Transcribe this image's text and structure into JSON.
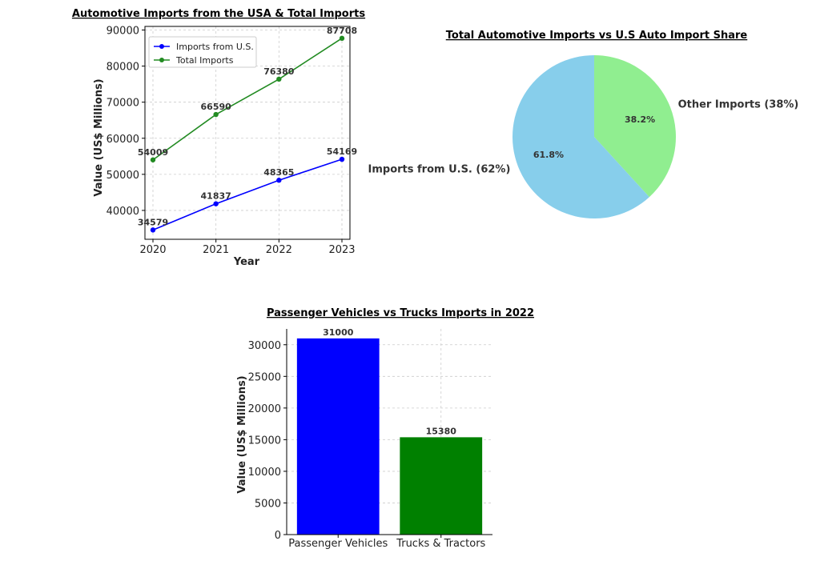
{
  "chart_data": [
    {
      "type": "line",
      "title": "Automotive Imports from the USA & Total Imports",
      "xlabel": "Year",
      "ylabel": "Value (US$ Millions)",
      "x": [
        2020,
        2021,
        2022,
        2023
      ],
      "ylim": [
        32000,
        91000
      ],
      "yticks": [
        40000,
        50000,
        60000,
        70000,
        80000,
        90000
      ],
      "grid": true,
      "legend": "top-left",
      "series": [
        {
          "name": "Imports from U.S.",
          "color": "#0000ff",
          "values": [
            34579,
            41837,
            48365,
            54169
          ]
        },
        {
          "name": "Total Imports",
          "color": "#228b22",
          "values": [
            54009,
            66590,
            76380,
            87708
          ]
        }
      ]
    },
    {
      "type": "pie",
      "title": "Total Automotive Imports vs U.S Auto Import Share",
      "slices": [
        {
          "label": "Other Imports (38%)",
          "value": 38.2,
          "pct_label": "38.2%",
          "color": "#90ee90"
        },
        {
          "label": "Imports from U.S. (62%)",
          "value": 61.8,
          "pct_label": "61.8%",
          "color": "#87ceeb"
        }
      ]
    },
    {
      "type": "bar",
      "title": "Passenger Vehicles vs Trucks Imports in 2022",
      "xlabel": "",
      "ylabel": "Value (US$ Millions)",
      "categories": [
        "Passenger Vehicles",
        "Trucks & Tractors"
      ],
      "values": [
        31000,
        15380
      ],
      "colors": [
        "#0000ff",
        "#008000"
      ],
      "ylim": [
        0,
        32500
      ],
      "yticks": [
        0,
        5000,
        10000,
        15000,
        20000,
        25000,
        30000
      ],
      "grid": true
    }
  ]
}
